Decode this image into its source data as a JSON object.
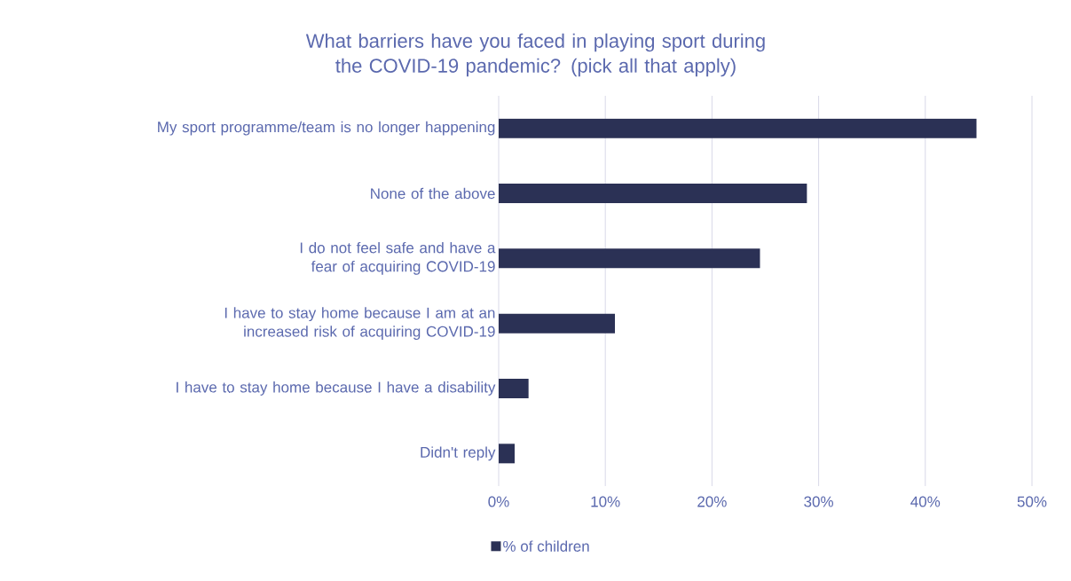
{
  "chart_data": {
    "type": "bar",
    "orientation": "horizontal",
    "title": "What barriers have you faced in playing sport during the COVID-19 pandemic? (pick all that apply)",
    "categories": [
      "My sport programme/team is no longer happening",
      "None of the above",
      "I do not feel safe and have a fear of acquiring COVID-19",
      "I have to stay home because I am at an increased risk of acquiring COVID-19",
      "I have to stay home because I have a disability",
      "Didn't reply"
    ],
    "series": [
      {
        "name": "% of children",
        "color": "#2b3155",
        "values": [
          44.8,
          28.9,
          24.5,
          10.9,
          2.8,
          1.5
        ]
      }
    ],
    "xlim": [
      0,
      50
    ],
    "xticks": [
      {
        "value": 0,
        "label": "0%"
      },
      {
        "value": 10,
        "label": "10%"
      },
      {
        "value": 20,
        "label": "20%"
      },
      {
        "value": 30,
        "label": "30%"
      },
      {
        "value": 40,
        "label": "40%"
      },
      {
        "value": 50,
        "label": "50%"
      }
    ],
    "grid": "x",
    "legend": "bottom"
  }
}
